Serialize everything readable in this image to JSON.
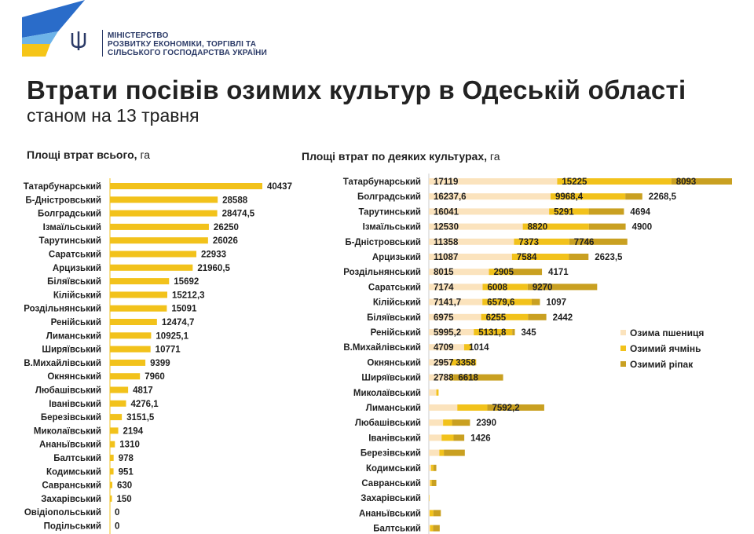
{
  "header": {
    "ministry_line1": "МІНІСТЕРСТВО",
    "ministry_line2": "РОЗВИТКУ ЕКОНОМІКИ, ТОРГІВЛІ ТА",
    "ministry_line3": "СІЛЬСЬКОГО ГОСПОДАРСТВА УКРАЇНИ",
    "title": "Втрати посівів озимих культур в Одеській області",
    "subtitle": "станом на 13 травня"
  },
  "colors": {
    "total": "#f2c21b",
    "wheat": "#fbe3bd",
    "barley": "#f2c21b",
    "rapeseed": "#c9a021",
    "logo_blue": "#2a6cc9",
    "logo_yellow": "#f5c518"
  },
  "chart_data": [
    {
      "type": "bar",
      "orientation": "horizontal",
      "title": "Площі втрат всього,",
      "unit": "га",
      "categories": [
        "Татарбунарський",
        "Б-Дністровський",
        "Болградський",
        "Ізмаїльський",
        "Тарутинський",
        "Саратський",
        "Арцизький",
        "Біляївський",
        "Кілійський",
        "Роздільнянський",
        "Ренійський",
        "Лиманський",
        "Ширяївський",
        "В.Михайлівський",
        "Окнянський",
        "Любашівський",
        "Іванівський",
        "Березівський",
        "Миколаївський",
        "Ананьївський",
        "Балтський",
        "Кодимський",
        "Савранський",
        "Захарівський",
        "Овідіопольський",
        "Подільський"
      ],
      "values": [
        40437,
        28588,
        28474.5,
        26250,
        26026,
        22933,
        21960.5,
        15692,
        15212.3,
        15091,
        12474.7,
        10925.1,
        10771,
        9399,
        7960,
        4817,
        4276.1,
        3151.5,
        2194,
        1310,
        978,
        951,
        630,
        150,
        0,
        0
      ],
      "value_labels": [
        "40437",
        "28588",
        "28474,5",
        "26250",
        "26026",
        "22933",
        "21960,5",
        "15692",
        "15212,3",
        "15091",
        "12474,7",
        "10925,1",
        "10771",
        "9399",
        "7960",
        "4817",
        "4276,1",
        "3151,5",
        "2194",
        "1310",
        "978",
        "951",
        "630",
        "150",
        "0",
        "0"
      ],
      "xlim": [
        0,
        42000
      ]
    },
    {
      "type": "bar",
      "orientation": "horizontal",
      "stacked": true,
      "title": "Площі втрат по деяких культурах,",
      "unit": "га",
      "categories": [
        "Татарбунарський",
        "Болградський",
        "Тарутинський",
        "Ізмаїльський",
        "Б-Дністровський",
        "Арцизький",
        "Роздільнянський",
        "Саратський",
        "Кілійський",
        "Біляївський",
        "Ренійський",
        "В.Михайлівський",
        "Окнянський",
        "Ширяївський",
        "Миколаївський",
        "Лиманський",
        "Любашівський",
        "Іванівський",
        "Березівський",
        "Кодимський",
        "Савранський",
        "Захарівський",
        "Ананьївський",
        "Балтський"
      ],
      "series": [
        {
          "name": "Озима пшениця",
          "values": [
            17119,
            16237.6,
            16041,
            12530,
            11358,
            11087,
            8015,
            7174,
            7141.7,
            6975,
            5995.2,
            4709,
            2957,
            2788,
            1000,
            3800,
            1900,
            1700,
            1400,
            300,
            200,
            50,
            100,
            150
          ],
          "labels": [
            "17119",
            "16237,6",
            "16041",
            "12530",
            "11358",
            "11087",
            "8015",
            "7174",
            "7141,7",
            "6975",
            "5995,2",
            "4709",
            "2957",
            "2788",
            "",
            "",
            "",
            "",
            "",
            "",
            "",
            "",
            "",
            ""
          ]
        },
        {
          "name": "Озимий ячмінь",
          "values": [
            15225,
            9968.4,
            5291,
            8820,
            7373,
            7584,
            2905,
            6008,
            6579.6,
            6255,
            5131.8,
            1014,
            3358,
            500,
            300,
            4000,
            1200,
            1600,
            600,
            300,
            200,
            50,
            500,
            400
          ],
          "labels": [
            "15225",
            "9968,4",
            "5291",
            "8820",
            "7373",
            "7584",
            "2905",
            "6008",
            "6579,6",
            "6255",
            "5131,8",
            "1014",
            "3358",
            "",
            "",
            "",
            "",
            "",
            "",
            "",
            "",
            "",
            "",
            ""
          ]
        },
        {
          "name": "Озимий ріпак",
          "values": [
            8093,
            2268.5,
            4694,
            4900,
            7746,
            2623.5,
            4171,
            9270,
            1097,
            2442,
            345,
            0,
            0,
            6618,
            0,
            7592.2,
            2390,
            1426,
            2800,
            400,
            600,
            0,
            1000,
            900
          ],
          "labels": [
            "8093",
            "2268,5",
            "4694",
            "4900",
            "7746",
            "2623,5",
            "4171",
            "9270",
            "1097",
            "2442",
            "345",
            "",
            "",
            "6618",
            "",
            "7592,2",
            "2390",
            "1426",
            "",
            "",
            "",
            "",
            "",
            ""
          ]
        }
      ],
      "xlim": [
        0,
        41000
      ]
    }
  ]
}
